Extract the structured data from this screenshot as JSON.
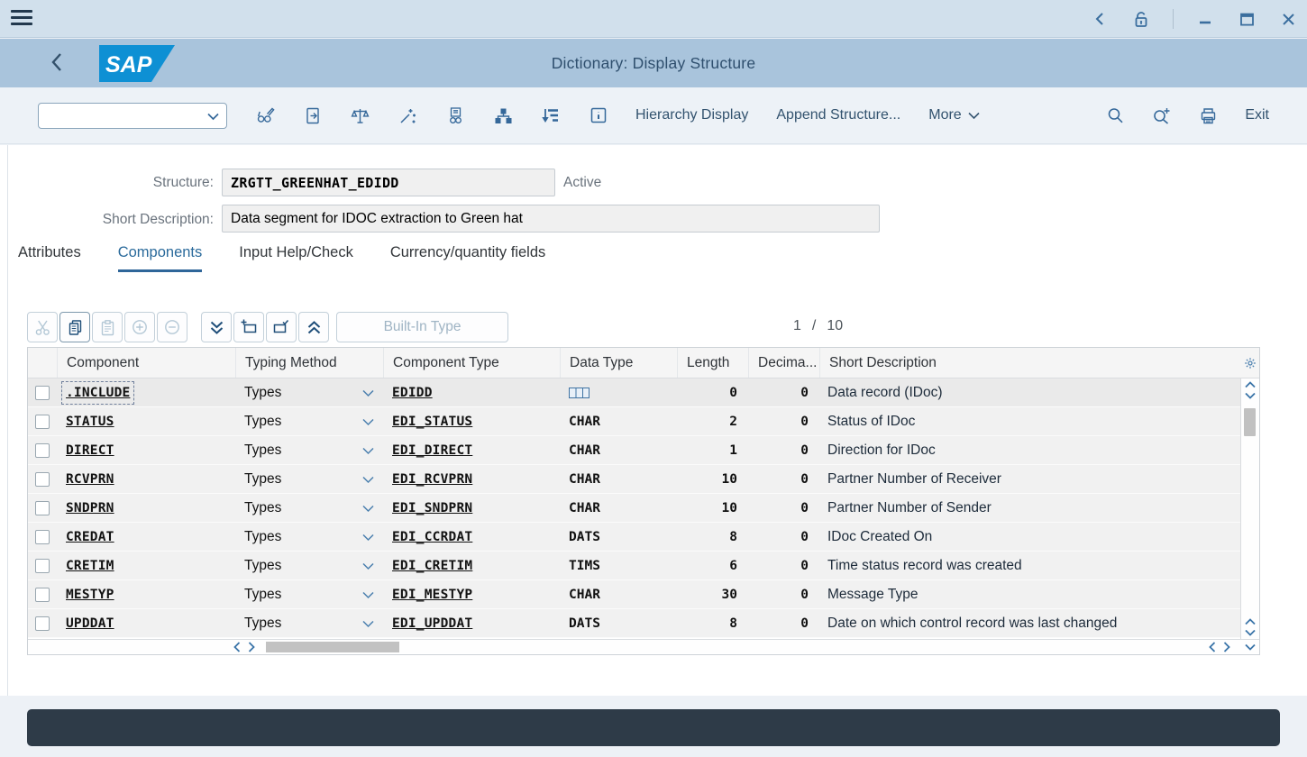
{
  "header": {
    "title": "Dictionary: Display Structure"
  },
  "toolbar": {
    "combo_value": "",
    "icon_names": [
      "display-change-icon",
      "copy-icon",
      "check-consistency-icon",
      "activate-icon",
      "where-used-icon",
      "hierarchy-icon",
      "sort-icon",
      "info-icon",
      "search-icon",
      "search-next-icon",
      "print-icon"
    ],
    "hierarchy_display_label": "Hierarchy Display",
    "append_structure_label": "Append Structure...",
    "more_label": "More",
    "exit_label": "Exit"
  },
  "form": {
    "structure_label": "Structure:",
    "structure_value": "ZRGTT_GREENHAT_EDIDD",
    "status_text": "Active",
    "short_description_label": "Short Description:",
    "short_description_value": "Data segment for IDOC extraction to Green hat"
  },
  "tabs": [
    {
      "label": "Attributes",
      "active": false
    },
    {
      "label": "Components",
      "active": true
    },
    {
      "label": "Input Help/Check",
      "active": false
    },
    {
      "label": "Currency/quantity fields",
      "active": false
    }
  ],
  "table": {
    "builtin_type_label": "Built-In Type",
    "position": {
      "current": "1",
      "separator": "/",
      "total": "10"
    },
    "columns": {
      "component": "Component",
      "typing_method": "Typing Method",
      "component_type": "Component Type",
      "data_type": "Data Type",
      "length": "Length",
      "decimals": "Decima...",
      "short_description": "Short Description"
    },
    "rows": [
      {
        "component": ".INCLUDE",
        "typing": "Types",
        "component_type": "EDIDD",
        "data_type": "",
        "data_type_icon": "structure-grid-icon",
        "length": "0",
        "decimals": "0",
        "description": "Data record (IDoc)"
      },
      {
        "component": "STATUS",
        "typing": "Types",
        "component_type": "EDI_STATUS",
        "data_type": "CHAR",
        "length": "2",
        "decimals": "0",
        "description": "Status of IDoc"
      },
      {
        "component": "DIRECT",
        "typing": "Types",
        "component_type": "EDI_DIRECT",
        "data_type": "CHAR",
        "length": "1",
        "decimals": "0",
        "description": "Direction for IDoc"
      },
      {
        "component": "RCVPRN",
        "typing": "Types",
        "component_type": "EDI_RCVPRN",
        "data_type": "CHAR",
        "length": "10",
        "decimals": "0",
        "description": "Partner Number of Receiver"
      },
      {
        "component": "SNDPRN",
        "typing": "Types",
        "component_type": "EDI_SNDPRN",
        "data_type": "CHAR",
        "length": "10",
        "decimals": "0",
        "description": "Partner Number of Sender"
      },
      {
        "component": "CREDAT",
        "typing": "Types",
        "component_type": "EDI_CCRDAT",
        "data_type": "DATS",
        "length": "8",
        "decimals": "0",
        "description": "IDoc Created On"
      },
      {
        "component": "CRETIM",
        "typing": "Types",
        "component_type": "EDI_CRETIM",
        "data_type": "TIMS",
        "length": "6",
        "decimals": "0",
        "description": "Time status record was created"
      },
      {
        "component": "MESTYP",
        "typing": "Types",
        "component_type": "EDI_MESTYP",
        "data_type": "CHAR",
        "length": "30",
        "decimals": "0",
        "description": "Message Type"
      },
      {
        "component": "UPDDAT",
        "typing": "Types",
        "component_type": "EDI_UPDDAT",
        "data_type": "DATS",
        "length": "8",
        "decimals": "0",
        "description": "Date on which control record was last changed"
      }
    ]
  },
  "colors": {
    "accent_blue": "#35689a",
    "header_bg": "#a9c4dc",
    "statusbar_bg": "#2e3b48",
    "active_tab": "#2a6a9b"
  }
}
